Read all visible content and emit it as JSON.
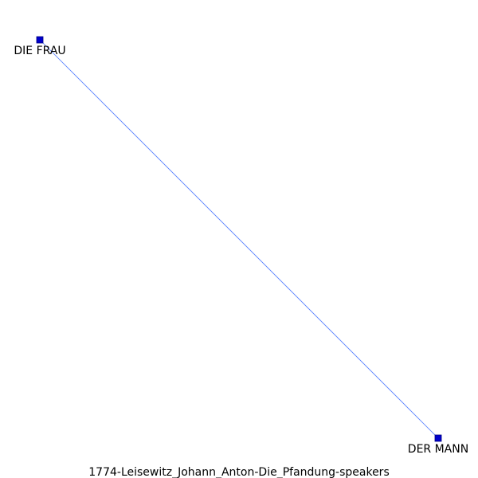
{
  "graph": {
    "title": "1774-Leisewitz_Johann_Anton-Die_Pfandung-speakers",
    "node_color": "#0000cc",
    "node_border_color": "#000080",
    "edge_color": "#4d79ff",
    "nodes": [
      {
        "id": "frau",
        "label": "DIE FRAU"
      },
      {
        "id": "mann",
        "label": "DER MANN"
      }
    ],
    "edges": [
      {
        "source": "frau",
        "target": "mann"
      }
    ]
  }
}
